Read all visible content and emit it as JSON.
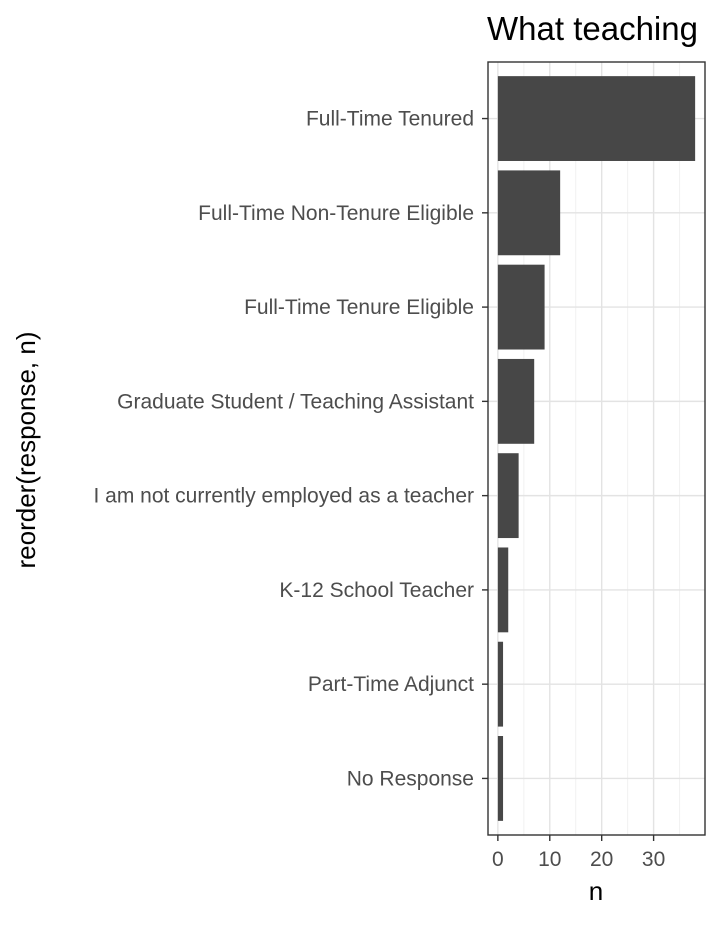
{
  "chart_data": {
    "type": "bar",
    "orientation": "horizontal",
    "title": "What teaching",
    "xlabel": "n",
    "ylabel": "reorder(response, n)",
    "categories": [
      "Full-Time Tenured",
      "Full-Time Non-Tenure Eligible",
      "Full-Time Tenure Eligible",
      "Graduate Student / Teaching Assistant",
      "I am not currently employed as a teacher",
      "K-12 School Teacher",
      "Part-Time Adjunct",
      "No Response"
    ],
    "values": [
      38,
      12,
      9,
      7,
      4,
      2,
      1,
      1
    ],
    "xlim": [
      -1.9,
      39.9
    ],
    "xticks": [
      0,
      10,
      20,
      30
    ],
    "grid": true,
    "legend": "none",
    "bar_color": "#474747",
    "panel_border_color": "#333333",
    "grid_major_color": "#e3e3e3",
    "grid_minor_color": "#f1f1f1",
    "text_color": "#4d4d4d"
  }
}
